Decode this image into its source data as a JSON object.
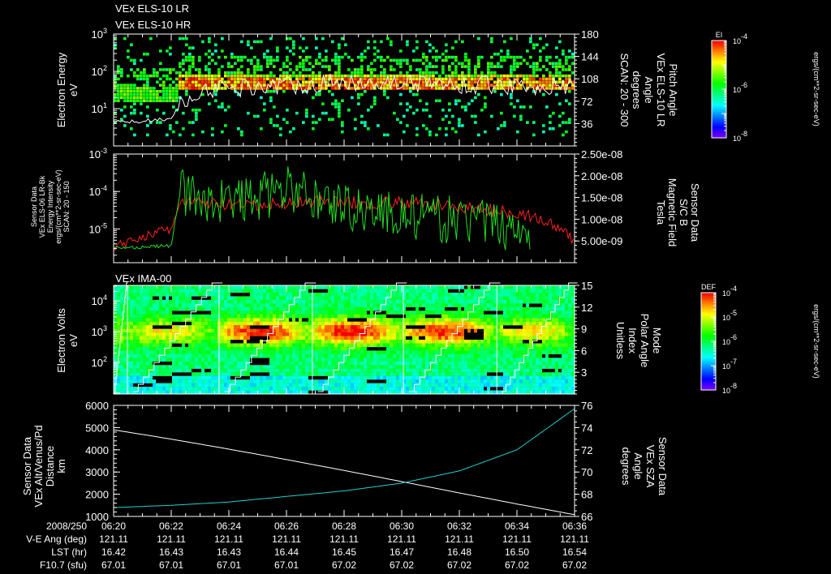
{
  "titles": {
    "els_lr": "VEx ELS-10 LR",
    "els_hr": "VEx ELS-10 HR",
    "ima": "VEx IMA-00"
  },
  "colors": {
    "white": "#ffffff",
    "red": "#ff2020",
    "green": "#20e020",
    "cyan": "#20d0d0"
  },
  "colorbars": [
    {
      "label": "EI",
      "ticks": [
        {
          "base": "10",
          "exp": "-4"
        },
        {
          "base": "10",
          "exp": "-6"
        },
        {
          "base": "10",
          "exp": "-8"
        }
      ],
      "units": "ergs/(cm**2-sr-sec-eV)"
    },
    {
      "label": "DEF",
      "ticks": [
        {
          "base": "10",
          "exp": "-4"
        },
        {
          "base": "10",
          "exp": "-5"
        },
        {
          "base": "10",
          "exp": "-6"
        },
        {
          "base": "10",
          "exp": "-7"
        },
        {
          "base": "10",
          "exp": "-8"
        }
      ],
      "units": "ergs/(cm**2-sr-sec-eV)"
    }
  ],
  "time_axis": {
    "date": "2008/250",
    "ticks": [
      "06:20",
      "06:22",
      "06:24",
      "06:26",
      "06:28",
      "06:30",
      "06:32",
      "06:34",
      "06:36"
    ],
    "rows": [
      {
        "label": "V-E Ang (deg)",
        "values": [
          "121.11",
          "121.11",
          "121.11",
          "121.11",
          "121.11",
          "121.11",
          "121.11",
          "121.11",
          "121.11"
        ]
      },
      {
        "label": "LST (hr)",
        "values": [
          "16.42",
          "16.43",
          "16.43",
          "16.44",
          "16.45",
          "16.47",
          "16.48",
          "16.50",
          "16.54"
        ]
      },
      {
        "label": "F10.7 (sfu)",
        "values": [
          "67.01",
          "67.01",
          "67.01",
          "67.01",
          "67.02",
          "67.02",
          "67.02",
          "67.02",
          "67.02"
        ]
      }
    ]
  },
  "chart_data": [
    {
      "type": "heatmap",
      "title": "VEx ELS-10 LR / VEx ELS-10 HR",
      "ylabel": [
        "Electron Energy",
        "eV"
      ],
      "ylim_log10": [
        0,
        3
      ],
      "yticks": [
        {
          "base": "10",
          "exp": "3"
        },
        {
          "base": "10",
          "exp": "2"
        },
        {
          "base": "10",
          "exp": "1"
        }
      ],
      "y2label": [
        "Pitch Angle",
        "VEx ELS-10 LR",
        "Angle",
        "degrees",
        "SCAN: 20 - 300"
      ],
      "y2lim": [
        0,
        180
      ],
      "y2ticks": [
        "180",
        "144",
        "108",
        "72",
        "36"
      ],
      "xlim_minutes_after_0620": [
        0,
        16
      ],
      "band_onset_minute": 2.2,
      "band_log10_eV_before": [
        1.2,
        1.6
      ],
      "band_log10_eV_after": [
        1.5,
        1.95
      ],
      "pitch_angle_line_deg": [
        [
          0,
          38
        ],
        [
          1,
          40
        ],
        [
          2,
          44
        ],
        [
          2.2,
          60
        ],
        [
          3,
          90
        ],
        [
          5,
          96
        ],
        [
          7,
          100
        ],
        [
          9,
          104
        ],
        [
          11,
          100
        ],
        [
          13,
          98
        ],
        [
          15,
          96
        ],
        [
          16,
          95
        ]
      ]
    },
    {
      "type": "line",
      "ylabel": [
        "Sensor Data",
        "VEx ELS-06 LR-Bk",
        "Energy Intensity",
        "ergs/(cm**2-sr-sec-eV)",
        "SCAN: 20 - 150"
      ],
      "ylim_log10": [
        -5.9,
        -3
      ],
      "yticks": [
        {
          "base": "10",
          "exp": "-3"
        },
        {
          "base": "10",
          "exp": "-4"
        },
        {
          "base": "10",
          "exp": "-5"
        }
      ],
      "y2label": [
        "Sensor Data",
        "S/C B",
        "Magnetic Field",
        "Tesla"
      ],
      "y2lim": [
        0,
        2.5e-08
      ],
      "y2ticks": [
        "2.50e-08",
        "2.00e-08",
        "1.50e-08",
        "1.00e-08",
        "5.00e-09"
      ],
      "series": [
        {
          "name": "Energy Intensity",
          "color": "#ff2020",
          "x_minutes": [
            0,
            1,
            2,
            2.3,
            3,
            4,
            5,
            6,
            7,
            8,
            9,
            10,
            11,
            12,
            13,
            14,
            15,
            16
          ],
          "log10_values": [
            -5.5,
            -5.2,
            -5.0,
            -4.3,
            -4.3,
            -4.35,
            -4.4,
            -4.3,
            -4.25,
            -4.3,
            -4.3,
            -4.3,
            -4.35,
            -4.4,
            -4.5,
            -4.55,
            -4.8,
            -5.3
          ]
        },
        {
          "name": "Magnetic Field",
          "color": "#20e020",
          "x_minutes": [
            0,
            1,
            2,
            2.3,
            3,
            4,
            5,
            6,
            7,
            8,
            9,
            10,
            11,
            12,
            13,
            14,
            14.5
          ],
          "values": [
            3.4e-09,
            3.6e-09,
            3.9e-09,
            1.6e-08,
            1.5e-08,
            1.4e-08,
            1.5e-08,
            1.7e-08,
            1.5e-08,
            1.3e-08,
            1.2e-08,
            1.1e-08,
            1e-08,
            1e-08,
            9e-09,
            8e-09,
            8e-09
          ]
        }
      ]
    },
    {
      "type": "heatmap",
      "title": "VEx IMA-00",
      "ylabel": [
        "Electron Volts",
        "eV"
      ],
      "ylim_log10": [
        0.97,
        4.5
      ],
      "yticks": [
        {
          "base": "10",
          "exp": "4"
        },
        {
          "base": "10",
          "exp": "3"
        },
        {
          "base": "10",
          "exp": "2"
        }
      ],
      "y2label": [
        "Mode",
        "Polar Angle",
        "Index",
        "Unitless"
      ],
      "y2lim": [
        0,
        15
      ],
      "y2ticks": [
        "15",
        "12",
        "9",
        "6",
        "3"
      ],
      "scan_boundaries_minutes": [
        0.48,
        3.66,
        6.9,
        10.06,
        13.3
      ],
      "peak_log10_eV": 3.0,
      "block_peak_intensity": [
        0.45,
        0.6,
        0.95,
        1.0,
        0.95,
        0.65
      ]
    },
    {
      "type": "line",
      "ylabel": [
        "Sensor Data",
        "VEx Alt/Venus/Pd",
        "Distance",
        "km"
      ],
      "ylim": [
        1000,
        6000
      ],
      "yticks": [
        "6000",
        "5000",
        "4000",
        "3000",
        "2000",
        "1000"
      ],
      "y2label": [
        "Sensor Data",
        "VEx SZA",
        "Angle",
        "degrees"
      ],
      "y2lim": [
        66,
        76
      ],
      "y2ticks": [
        "76",
        "74",
        "72",
        "70",
        "68",
        "66"
      ],
      "series": [
        {
          "name": "Altitude",
          "color": "#ffffff",
          "x_minutes": [
            0,
            2,
            4,
            6,
            8,
            10,
            12,
            14,
            16
          ],
          "values": [
            4900,
            4480,
            4030,
            3560,
            3070,
            2570,
            2060,
            1560,
            1080
          ]
        },
        {
          "name": "SZA",
          "color": "#20d0d0",
          "x_minutes": [
            0,
            2,
            4,
            6,
            8,
            10,
            12,
            14,
            16
          ],
          "values": [
            66.8,
            67.0,
            67.3,
            67.8,
            68.3,
            69.0,
            70.1,
            72.0,
            75.7
          ]
        }
      ]
    }
  ]
}
